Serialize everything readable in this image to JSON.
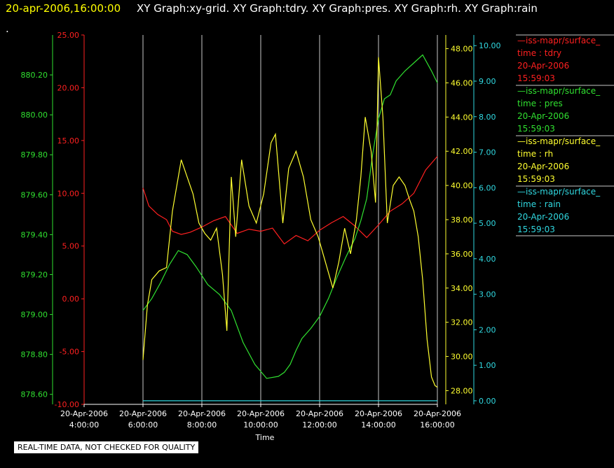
{
  "header": {
    "timestamp": "20-apr-2006,16:00:00",
    "graphs": "XY Graph:xy-grid.  XY Graph:tdry.  XY Graph:pres.  XY Graph:rh.  XY Graph:rain",
    "dot": "."
  },
  "quality_note": "REAL-TIME DATA, NOT CHECKED FOR QUALITY",
  "colors": {
    "tdry": "#ff2020",
    "pres": "#30e030",
    "rh": "#ffff30",
    "rain": "#30d8e0",
    "grid": "#c8c8c8",
    "timestamp": "#ffff00",
    "text": "#ffffff"
  },
  "chart_data": {
    "type": "line",
    "xlabel": "Time",
    "xlim": [
      "2006-04-20T04:00",
      "2006-04-20T16:00"
    ],
    "x_ticks": [
      {
        "line1": "20-Apr-2006",
        "line2": "4:00:00"
      },
      {
        "line1": "20-Apr-2006",
        "line2": "6:00:00"
      },
      {
        "line1": "20-Apr-2006",
        "line2": "8:00:00"
      },
      {
        "line1": "20-Apr-2006",
        "line2": "10:00:00"
      },
      {
        "line1": "20-Apr-2006",
        "line2": "12:00:00"
      },
      {
        "line1": "20-Apr-2006",
        "line2": "14:00:00"
      },
      {
        "line1": "20-Apr-2006",
        "line2": "16:00:00"
      }
    ],
    "axes": [
      {
        "id": "pres",
        "color": "#30e030",
        "ylim": [
          878.55,
          880.4
        ],
        "ticks": [
          "878.60",
          "878.80",
          "879.00",
          "879.20",
          "879.40",
          "879.60",
          "879.80",
          "880.00",
          "880.20"
        ]
      },
      {
        "id": "tdry",
        "color": "#ff2020",
        "ylim": [
          -10,
          25
        ],
        "ticks": [
          "-10.00",
          "-5.00",
          "0.00",
          "5.00",
          "10.00",
          "15.00",
          "20.00",
          "25.00"
        ]
      },
      {
        "id": "rh",
        "color": "#ffff30",
        "ylim": [
          27.2,
          48.8
        ],
        "ticks": [
          "28.00",
          "30.00",
          "32.00",
          "34.00",
          "36.00",
          "38.00",
          "40.00",
          "42.00",
          "44.00",
          "46.00",
          "48.00"
        ]
      },
      {
        "id": "rain",
        "color": "#30d8e0",
        "ylim": [
          -0.1,
          10.3
        ],
        "ticks": [
          "0.00",
          "1.00",
          "2.00",
          "3.00",
          "4.00",
          "5.00",
          "6.00",
          "7.00",
          "8.00",
          "9.00",
          "10.00"
        ]
      }
    ],
    "series": [
      {
        "id": "tdry",
        "axis": "tdry",
        "color": "#ff2020",
        "x": [
          6.0,
          6.2,
          6.5,
          6.8,
          7.0,
          7.3,
          7.6,
          8.0,
          8.4,
          8.8,
          9.2,
          9.6,
          10.0,
          10.4,
          10.8,
          11.2,
          11.6,
          12.0,
          12.4,
          12.8,
          13.2,
          13.6,
          14.0,
          14.4,
          14.8,
          15.2,
          15.6,
          16.0
        ],
        "y": [
          10.5,
          8.8,
          8.0,
          7.5,
          6.4,
          6.1,
          6.3,
          6.8,
          7.4,
          7.8,
          6.2,
          6.6,
          6.4,
          6.7,
          5.2,
          6.0,
          5.5,
          6.5,
          7.2,
          7.8,
          6.9,
          5.8,
          7.0,
          8.3,
          9.0,
          10.0,
          12.2,
          13.5
        ]
      },
      {
        "id": "pres",
        "axis": "pres",
        "color": "#30e030",
        "x": [
          6.0,
          6.3,
          6.6,
          6.9,
          7.2,
          7.5,
          7.8,
          8.2,
          8.6,
          9.0,
          9.4,
          9.8,
          10.2,
          10.6,
          10.8,
          11.0,
          11.2,
          11.4,
          11.7,
          12.0,
          12.3,
          12.6,
          12.9,
          13.2,
          13.4,
          13.6,
          13.8,
          14.0,
          14.2,
          14.4,
          14.6,
          14.9,
          15.2,
          15.5,
          15.8,
          16.0
        ],
        "y": [
          879.02,
          879.08,
          879.16,
          879.25,
          879.32,
          879.3,
          879.24,
          879.15,
          879.1,
          879.02,
          878.86,
          878.75,
          878.68,
          878.69,
          878.71,
          878.75,
          878.82,
          878.88,
          878.93,
          878.99,
          879.08,
          879.19,
          879.29,
          879.38,
          879.47,
          879.58,
          879.8,
          879.98,
          880.08,
          880.1,
          880.17,
          880.22,
          880.26,
          880.3,
          880.22,
          880.16
        ]
      },
      {
        "id": "rh",
        "axis": "rh",
        "color": "#ffff30",
        "x": [
          6.0,
          6.15,
          6.3,
          6.55,
          6.8,
          7.0,
          7.3,
          7.5,
          7.7,
          7.9,
          8.1,
          8.3,
          8.5,
          8.7,
          8.85,
          9.0,
          9.15,
          9.35,
          9.6,
          9.85,
          10.1,
          10.35,
          10.5,
          10.75,
          10.95,
          11.2,
          11.45,
          11.7,
          11.95,
          12.2,
          12.45,
          12.65,
          12.85,
          13.05,
          13.25,
          13.4,
          13.55,
          13.75,
          13.9,
          14.0,
          14.15,
          14.3,
          14.5,
          14.7,
          14.9,
          15.05,
          15.2,
          15.35,
          15.5,
          15.65,
          15.8,
          15.92,
          16.0
        ],
        "y": [
          29.8,
          33.0,
          34.5,
          35.0,
          35.2,
          38.5,
          41.5,
          40.5,
          39.5,
          37.8,
          37.2,
          36.8,
          37.5,
          34.8,
          31.5,
          40.5,
          37.0,
          41.5,
          38.8,
          37.8,
          39.5,
          42.5,
          43.0,
          37.8,
          41.0,
          42.0,
          40.5,
          38.0,
          37.0,
          35.5,
          34.0,
          35.5,
          37.5,
          36.0,
          38.0,
          40.5,
          44.0,
          42.0,
          39.0,
          47.5,
          44.0,
          37.8,
          40.0,
          40.5,
          40.0,
          39.2,
          38.5,
          37.0,
          34.5,
          31.0,
          28.8,
          28.3,
          28.2
        ]
      },
      {
        "id": "rain",
        "axis": "rain",
        "color": "#30d8e0",
        "x": [
          6.0,
          16.0
        ],
        "y": [
          0.0,
          0.0
        ]
      }
    ],
    "legend": [
      {
        "line1": "—iss-mapr/surface_",
        "line2": "time : tdry",
        "line3": "20-Apr-2006",
        "line4": "15:59:03",
        "color": "#ff2020"
      },
      {
        "line1": "—iss-mapr/surface_",
        "line2": "time : pres",
        "line3": "20-Apr-2006",
        "line4": "15:59:03",
        "color": "#30e030"
      },
      {
        "line1": "—iss-mapr/surface_",
        "line2": "time : rh",
        "line3": "20-Apr-2006",
        "line4": "15:59:03",
        "color": "#ffff30"
      },
      {
        "line1": "—iss-mapr/surface_",
        "line2": "time : rain",
        "line3": "20-Apr-2006",
        "line4": "15:59:03",
        "color": "#30d8e0"
      }
    ],
    "grid": true,
    "legend_position": "right"
  }
}
